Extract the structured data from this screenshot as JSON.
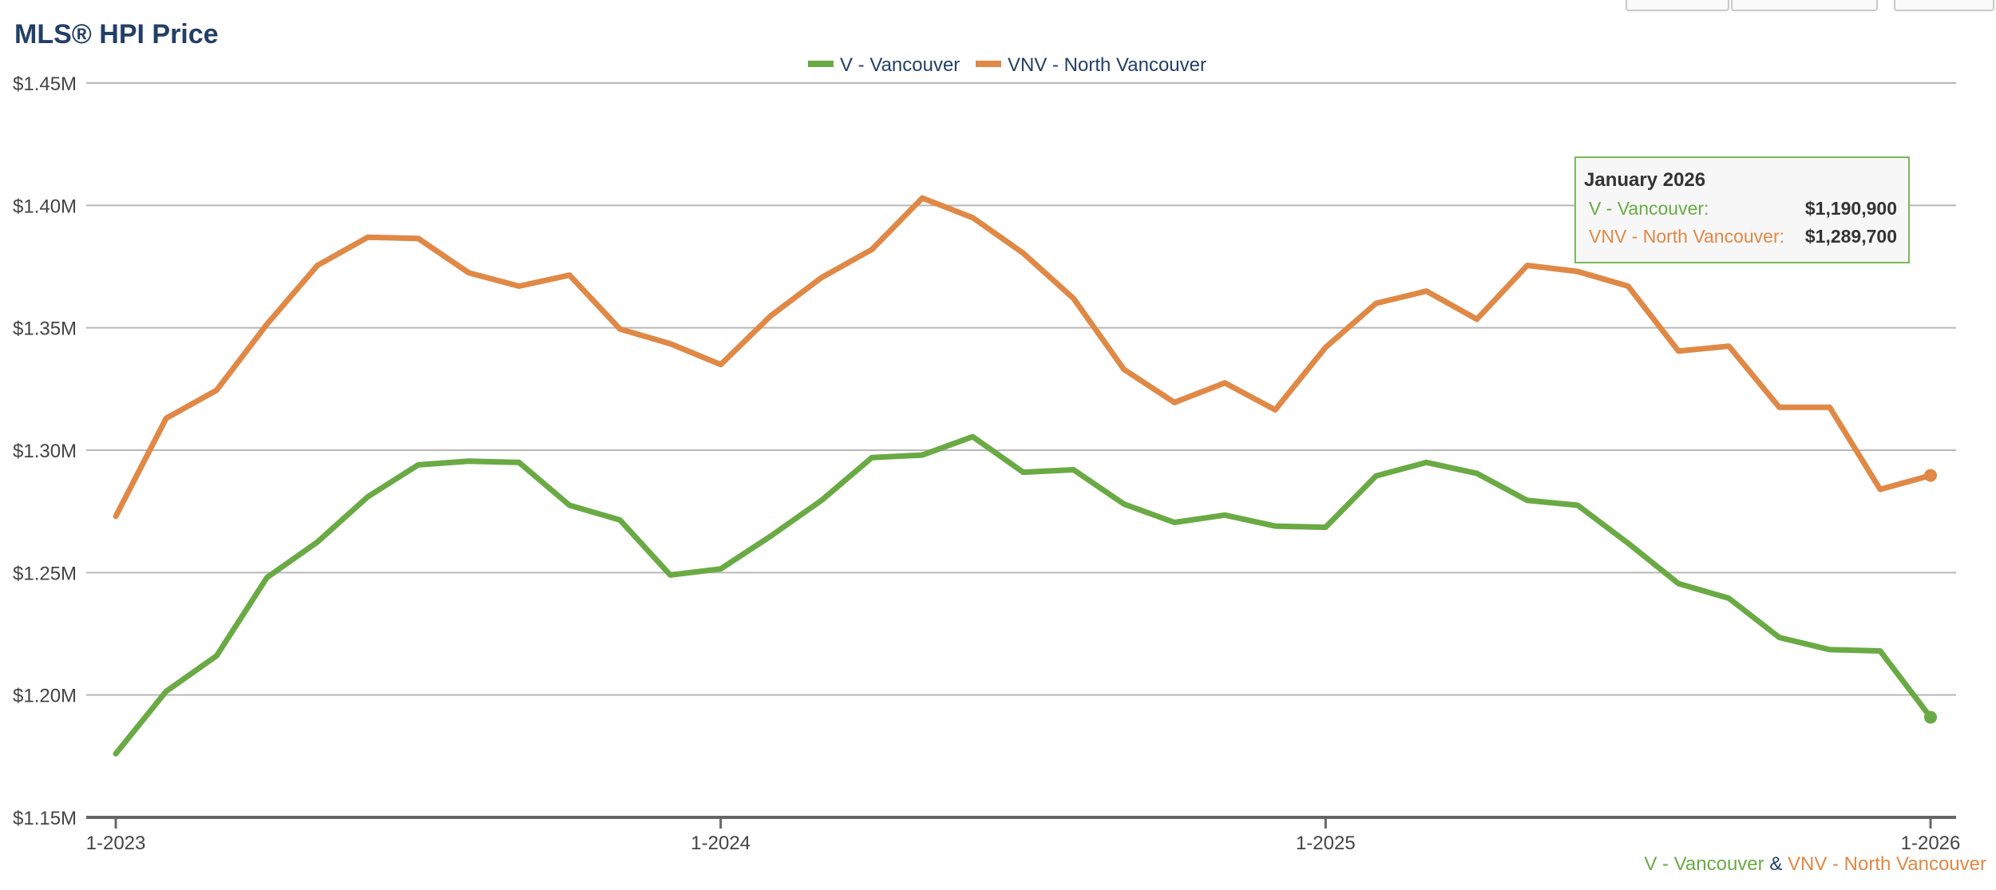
{
  "chart_data": {
    "type": "line",
    "title": "MLS® HPI Price",
    "x": [
      "1-2023",
      "2-2023",
      "3-2023",
      "4-2023",
      "5-2023",
      "6-2023",
      "7-2023",
      "8-2023",
      "9-2023",
      "10-2023",
      "11-2023",
      "12-2023",
      "1-2024",
      "2-2024",
      "3-2024",
      "4-2024",
      "5-2024",
      "6-2024",
      "7-2024",
      "8-2024",
      "9-2024",
      "10-2024",
      "11-2024",
      "12-2024",
      "1-2025",
      "2-2025",
      "3-2025",
      "4-2025",
      "5-2025",
      "6-2025",
      "7-2025",
      "8-2025",
      "9-2025",
      "10-2025",
      "11-2025",
      "12-2025",
      "1-2026"
    ],
    "x_tick_labels": [
      "1-2023",
      "1-2024",
      "1-2025",
      "1-2026"
    ],
    "y_tick_labels": [
      "$1.15M",
      "$1.20M",
      "$1.25M",
      "$1.30M",
      "$1.35M",
      "$1.40M",
      "$1.45M"
    ],
    "ylim": [
      1150000,
      1450000
    ],
    "grid": true,
    "legend_position": "top-center",
    "series": [
      {
        "name": "V - Vancouver",
        "color": "#6aaa44",
        "values": [
          1176000,
          1201500,
          1216000,
          1248000,
          1262500,
          1281000,
          1294000,
          1295500,
          1295000,
          1277500,
          1271500,
          1249000,
          1251500,
          1265000,
          1279500,
          1297000,
          1298000,
          1305500,
          1291000,
          1292000,
          1278000,
          1270500,
          1273500,
          1269000,
          1268500,
          1289500,
          1295000,
          1290500,
          1279500,
          1277500,
          1262000,
          1245500,
          1239500,
          1223500,
          1218500,
          1218000,
          1190900
        ]
      },
      {
        "name": "VNV - North Vancouver",
        "color": "#e08845",
        "values": [
          1273000,
          1313000,
          1324500,
          1351500,
          1375500,
          1387000,
          1386500,
          1372500,
          1367000,
          1371500,
          1349500,
          1343500,
          1335000,
          1355000,
          1370500,
          1382000,
          1403000,
          1395000,
          1380500,
          1362000,
          1333000,
          1319500,
          1327500,
          1316500,
          1342000,
          1360000,
          1365000,
          1353500,
          1375500,
          1373000,
          1367000,
          1340500,
          1342500,
          1317500,
          1317500,
          1284000,
          1289700
        ]
      }
    ]
  },
  "tooltip": {
    "title": "January 2026",
    "rows": [
      {
        "label": "V - Vancouver:",
        "value": "$1,190,900",
        "color": "#6aaa44"
      },
      {
        "label": "VNV - North Vancouver:",
        "value": "$1,289,700",
        "color": "#e08845"
      }
    ]
  },
  "footer": {
    "part1": "V - Vancouver",
    "joiner": "&",
    "part2": "VNV - North Vancouver"
  }
}
